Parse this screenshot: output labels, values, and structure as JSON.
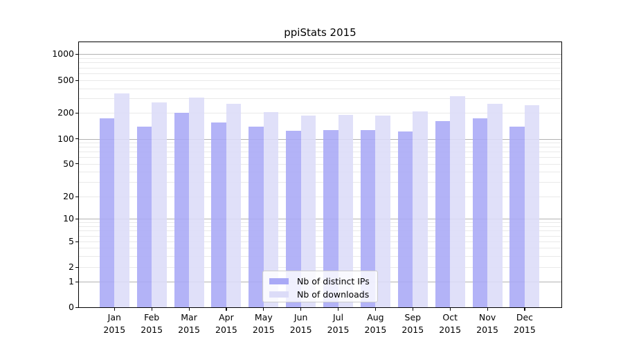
{
  "title": "ppiStats 2015",
  "chart_data": {
    "type": "bar",
    "title": "ppiStats 2015",
    "categories": [
      "Jan 2015",
      "Feb 2015",
      "Mar 2015",
      "Apr 2015",
      "May 2015",
      "Jun 2015",
      "Jul 2015",
      "Aug 2015",
      "Sep 2015",
      "Oct 2015",
      "Nov 2015",
      "Dec 2015"
    ],
    "series": [
      {
        "name": "Nb of distinct IPs",
        "color": "#a9a9f6",
        "values": [
          175,
          140,
          200,
          155,
          140,
          124,
          126,
          127,
          122,
          161,
          175,
          138
        ]
      },
      {
        "name": "Nb of downloads",
        "color": "#dcdcf8",
        "values": [
          345,
          270,
          310,
          258,
          207,
          188,
          190,
          188,
          210,
          320,
          258,
          250
        ]
      }
    ],
    "xlabel": "",
    "ylabel": "",
    "yscale": "symlog",
    "yticks": [
      0,
      1,
      2,
      5,
      10,
      20,
      50,
      100,
      200,
      500,
      1000
    ],
    "ylim": [
      0,
      1500
    ],
    "grid": "both",
    "legend_position": "lower center"
  },
  "colors": {
    "bar_distinct_ips": "#a9a9f6",
    "bar_downloads": "#dcdcf8",
    "grid_major": "#b2b2b2",
    "grid_minor": "#e9e9e9",
    "axis": "#000000",
    "legend_border": "#cccccc"
  }
}
